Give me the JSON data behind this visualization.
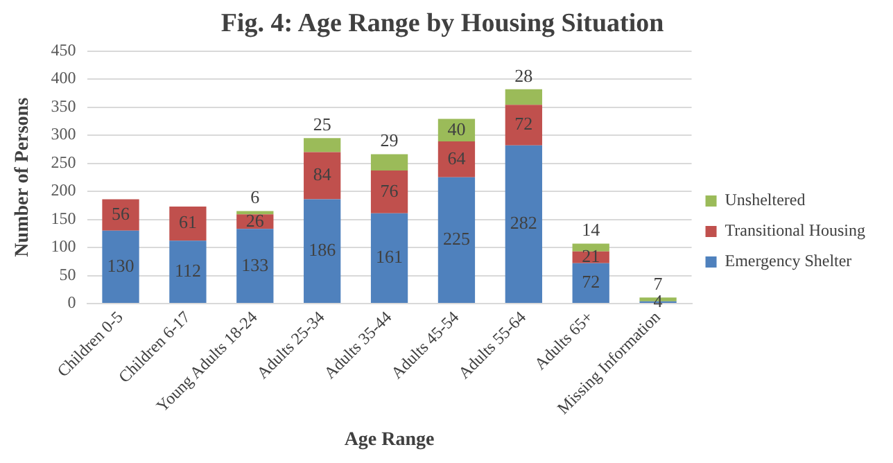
{
  "chart_data": {
    "type": "bar",
    "title": "Fig. 4: Age Range by Housing Situation",
    "xlabel": "Age Range",
    "ylabel": "Number of Persons",
    "categories": [
      "Children 0-5",
      "Children 6-17",
      "Young Adults 18-24",
      "Adults 25-34",
      "Adults 35-44",
      "Adults 45-54",
      "Adults 55-64",
      "Adults 65+",
      "Missing Information"
    ],
    "series": [
      {
        "name": "Emergency Shelter",
        "color": "#4f81bd",
        "values": [
          130,
          112,
          133,
          186,
          161,
          225,
          282,
          72,
          4
        ]
      },
      {
        "name": "Transitional Housing",
        "color": "#c0504d",
        "values": [
          56,
          61,
          26,
          84,
          76,
          64,
          72,
          21,
          null
        ]
      },
      {
        "name": "Unsheltered",
        "color": "#9bbb59",
        "values": [
          null,
          null,
          6,
          25,
          29,
          40,
          28,
          14,
          7
        ]
      }
    ],
    "stacked": true,
    "data_labels": true,
    "ylim": [
      0,
      450
    ],
    "yticks": [
      0,
      50,
      100,
      150,
      200,
      250,
      300,
      350,
      400,
      450
    ],
    "grid": "y",
    "legend": "right"
  }
}
